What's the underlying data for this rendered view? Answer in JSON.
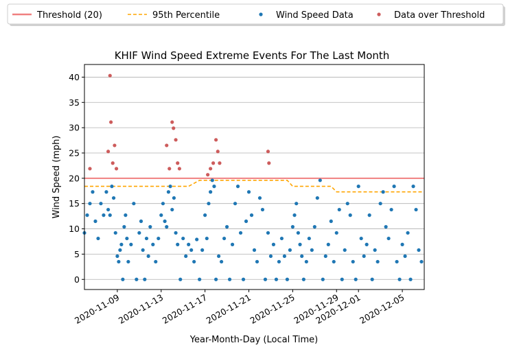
{
  "chart_data": {
    "type": "scatter",
    "title": "KHIF Wind Speed Extreme Events For The Last Month",
    "xlabel": "Year-Month-Day (Local Time)",
    "ylabel": "Wind Speed (mph)",
    "x_tick_labels": [
      "2020-11-09",
      "2020-11-13",
      "2020-11-17",
      "2020-11-21",
      "2020-11-25",
      "2020-11-29",
      "2020-12-01",
      "2020-12-05"
    ],
    "x_ticks": [
      "2020-11-09",
      "2020-11-13",
      "2020-11-17",
      "2020-11-21",
      "2020-11-25",
      "2020-11-29",
      "2020-12-01",
      "2020-12-05"
    ],
    "xlim": [
      "2020-11-06T00:00",
      "2020-12-07T00:00"
    ],
    "y_ticks": [
      0,
      5,
      10,
      15,
      20,
      25,
      30,
      35,
      40
    ],
    "ylim": [
      -2.0,
      42.5
    ],
    "grid": "horizontal",
    "legend_placement": "top, above plot",
    "legend": [
      {
        "label": "Threshold (20)",
        "marker": "solid-line",
        "color": "#f08080"
      },
      {
        "label": "95th Percentile",
        "marker": "dashed-line",
        "color": "#ffa500"
      },
      {
        "label": "Wind Speed Data",
        "marker": "dot",
        "color": "#1f77b4"
      },
      {
        "label": "Data over Threshold",
        "marker": "dot",
        "color": "#cd5c5c"
      }
    ],
    "threshold": {
      "name": "Threshold (20)",
      "value": 20,
      "color": "#f08080"
    },
    "percentile_95": {
      "name": "95th Percentile",
      "color": "#ffa500",
      "x": [
        "2020-11-06",
        "2020-11-15",
        "2020-11-15T12:00",
        "2020-11-16",
        "2020-11-16T12:00",
        "2020-11-24",
        "2020-11-24T12:00",
        "2020-11-25",
        "2020-11-25T12:00",
        "2020-11-26",
        "2020-11-26T12:00",
        "2020-11-28",
        "2020-11-28T12:00",
        "2020-11-29",
        "2020-11-29T12:00",
        "2020-12-07"
      ],
      "y": [
        18.4,
        18.4,
        18.4,
        19.0,
        19.6,
        19.6,
        19.6,
        18.4,
        18.4,
        18.4,
        18.4,
        18.4,
        18.4,
        17.3,
        17.3,
        17.3
      ]
    },
    "series": [
      {
        "name": "Wind Speed Data",
        "color": "#1f77b4",
        "points": [
          [
            "2020-11-06T00:00",
            9.2
          ],
          [
            "2020-11-06T06:00",
            12.7
          ],
          [
            "2020-11-06T12:00",
            15.0
          ],
          [
            "2020-11-06T18:00",
            17.3
          ],
          [
            "2020-11-07T00:00",
            11.5
          ],
          [
            "2020-11-07T06:00",
            8.1
          ],
          [
            "2020-11-07T12:00",
            15.0
          ],
          [
            "2020-11-07T18:00",
            12.7
          ],
          [
            "2020-11-08T00:00",
            17.3
          ],
          [
            "2020-11-08T04:00",
            13.8
          ],
          [
            "2020-11-08T08:00",
            12.7
          ],
          [
            "2020-11-08T12:00",
            18.4
          ],
          [
            "2020-11-08T16:00",
            16.1
          ],
          [
            "2020-11-08T20:00",
            9.2
          ],
          [
            "2020-11-09T00:00",
            4.6
          ],
          [
            "2020-11-09T03:00",
            3.5
          ],
          [
            "2020-11-09T06:00",
            5.8
          ],
          [
            "2020-11-09T09:00",
            6.9
          ],
          [
            "2020-11-09T12:00",
            0.0
          ],
          [
            "2020-11-09T15:00",
            10.4
          ],
          [
            "2020-11-09T18:00",
            12.7
          ],
          [
            "2020-11-09T21:00",
            8.1
          ],
          [
            "2020-11-10T00:00",
            3.5
          ],
          [
            "2020-11-10T06:00",
            6.9
          ],
          [
            "2020-11-10T12:00",
            15.0
          ],
          [
            "2020-11-10T18:00",
            0.0
          ],
          [
            "2020-11-11T00:00",
            9.2
          ],
          [
            "2020-11-11T04:00",
            11.5
          ],
          [
            "2020-11-11T08:00",
            5.8
          ],
          [
            "2020-11-11T12:00",
            0.0
          ],
          [
            "2020-11-11T16:00",
            8.1
          ],
          [
            "2020-11-11T20:00",
            4.6
          ],
          [
            "2020-11-12T00:00",
            10.4
          ],
          [
            "2020-11-12T06:00",
            6.9
          ],
          [
            "2020-11-12T12:00",
            3.5
          ],
          [
            "2020-11-12T18:00",
            8.1
          ],
          [
            "2020-11-13T00:00",
            12.7
          ],
          [
            "2020-11-13T04:00",
            15.0
          ],
          [
            "2020-11-13T08:00",
            11.5
          ],
          [
            "2020-11-13T12:00",
            10.4
          ],
          [
            "2020-11-13T16:00",
            17.3
          ],
          [
            "2020-11-13T20:00",
            18.4
          ],
          [
            "2020-11-14T00:00",
            13.8
          ],
          [
            "2020-11-14T04:00",
            16.1
          ],
          [
            "2020-11-14T08:00",
            9.2
          ],
          [
            "2020-11-14T12:00",
            6.9
          ],
          [
            "2020-11-14T18:00",
            0.0
          ],
          [
            "2020-11-15T00:00",
            8.1
          ],
          [
            "2020-11-15T06:00",
            4.6
          ],
          [
            "2020-11-15T12:00",
            6.9
          ],
          [
            "2020-11-15T18:00",
            5.8
          ],
          [
            "2020-11-16T00:00",
            3.5
          ],
          [
            "2020-11-16T06:00",
            7.9
          ],
          [
            "2020-11-16T12:00",
            0.0
          ],
          [
            "2020-11-16T18:00",
            5.8
          ],
          [
            "2020-11-17T00:00",
            12.7
          ],
          [
            "2020-11-17T04:00",
            8.1
          ],
          [
            "2020-11-17T08:00",
            15.0
          ],
          [
            "2020-11-17T12:00",
            17.3
          ],
          [
            "2020-11-17T16:00",
            19.6
          ],
          [
            "2020-11-17T20:00",
            18.4
          ],
          [
            "2020-11-18T00:00",
            0.0
          ],
          [
            "2020-11-18T06:00",
            4.6
          ],
          [
            "2020-11-18T12:00",
            3.5
          ],
          [
            "2020-11-18T18:00",
            8.1
          ],
          [
            "2020-11-19T00:00",
            10.4
          ],
          [
            "2020-11-19T06:00",
            0.0
          ],
          [
            "2020-11-19T12:00",
            6.9
          ],
          [
            "2020-11-19T18:00",
            15.0
          ],
          [
            "2020-11-20T00:00",
            18.4
          ],
          [
            "2020-11-20T06:00",
            9.2
          ],
          [
            "2020-11-20T12:00",
            0.0
          ],
          [
            "2020-11-20T18:00",
            11.5
          ],
          [
            "2020-11-21T00:00",
            17.3
          ],
          [
            "2020-11-21T06:00",
            12.7
          ],
          [
            "2020-11-21T12:00",
            5.8
          ],
          [
            "2020-11-21T18:00",
            3.5
          ],
          [
            "2020-11-22T00:00",
            16.1
          ],
          [
            "2020-11-22T06:00",
            13.8
          ],
          [
            "2020-11-22T12:00",
            0.0
          ],
          [
            "2020-11-22T18:00",
            9.2
          ],
          [
            "2020-11-23T00:00",
            4.6
          ],
          [
            "2020-11-23T06:00",
            6.9
          ],
          [
            "2020-11-23T12:00",
            0.0
          ],
          [
            "2020-11-23T18:00",
            3.5
          ],
          [
            "2020-11-24T00:00",
            8.1
          ],
          [
            "2020-11-24T06:00",
            4.6
          ],
          [
            "2020-11-24T12:00",
            0.0
          ],
          [
            "2020-11-24T18:00",
            5.8
          ],
          [
            "2020-11-25T00:00",
            10.4
          ],
          [
            "2020-11-25T04:00",
            12.7
          ],
          [
            "2020-11-25T08:00",
            15.0
          ],
          [
            "2020-11-25T12:00",
            9.2
          ],
          [
            "2020-11-25T16:00",
            6.9
          ],
          [
            "2020-11-25T20:00",
            4.6
          ],
          [
            "2020-11-26T00:00",
            0.0
          ],
          [
            "2020-11-26T06:00",
            3.5
          ],
          [
            "2020-11-26T12:00",
            8.1
          ],
          [
            "2020-11-26T18:00",
            5.8
          ],
          [
            "2020-11-27T00:00",
            10.4
          ],
          [
            "2020-11-27T06:00",
            16.1
          ],
          [
            "2020-11-27T12:00",
            19.6
          ],
          [
            "2020-11-27T18:00",
            0.0
          ],
          [
            "2020-11-28T00:00",
            4.6
          ],
          [
            "2020-11-28T06:00",
            6.9
          ],
          [
            "2020-11-28T12:00",
            11.5
          ],
          [
            "2020-11-28T18:00",
            3.5
          ],
          [
            "2020-11-29T00:00",
            9.2
          ],
          [
            "2020-11-29T06:00",
            13.8
          ],
          [
            "2020-11-29T12:00",
            0.0
          ],
          [
            "2020-11-29T18:00",
            5.8
          ],
          [
            "2020-11-30T00:00",
            15.0
          ],
          [
            "2020-11-30T06:00",
            12.7
          ],
          [
            "2020-11-30T12:00",
            3.5
          ],
          [
            "2020-11-30T18:00",
            0.0
          ],
          [
            "2020-12-01T00:00",
            18.4
          ],
          [
            "2020-12-01T06:00",
            8.1
          ],
          [
            "2020-12-01T12:00",
            4.6
          ],
          [
            "2020-12-01T18:00",
            6.9
          ],
          [
            "2020-12-02T00:00",
            12.7
          ],
          [
            "2020-12-02T06:00",
            0.0
          ],
          [
            "2020-12-02T12:00",
            5.8
          ],
          [
            "2020-12-02T18:00",
            3.5
          ],
          [
            "2020-12-03T00:00",
            15.0
          ],
          [
            "2020-12-03T06:00",
            17.3
          ],
          [
            "2020-12-03T12:00",
            10.4
          ],
          [
            "2020-12-03T18:00",
            8.1
          ],
          [
            "2020-12-04T00:00",
            13.8
          ],
          [
            "2020-12-04T06:00",
            18.4
          ],
          [
            "2020-12-04T12:00",
            3.5
          ],
          [
            "2020-12-04T18:00",
            0.0
          ],
          [
            "2020-12-05T00:00",
            6.9
          ],
          [
            "2020-12-05T06:00",
            4.6
          ],
          [
            "2020-12-05T12:00",
            9.2
          ],
          [
            "2020-12-05T18:00",
            0.0
          ],
          [
            "2020-12-06T00:00",
            18.4
          ],
          [
            "2020-12-06T06:00",
            13.8
          ],
          [
            "2020-12-06T12:00",
            5.8
          ],
          [
            "2020-12-06T18:00",
            3.5
          ]
        ]
      },
      {
        "name": "Data over Threshold",
        "color": "#cd5c5c",
        "points": [
          [
            "2020-11-06T12:00",
            21.9
          ],
          [
            "2020-11-08T04:00",
            25.3
          ],
          [
            "2020-11-08T08:00",
            40.3
          ],
          [
            "2020-11-08T10:00",
            31.1
          ],
          [
            "2020-11-08T14:00",
            23.0
          ],
          [
            "2020-11-08T18:00",
            26.5
          ],
          [
            "2020-11-08T22:00",
            21.9
          ],
          [
            "2020-11-13T12:00",
            26.5
          ],
          [
            "2020-11-13T18:00",
            21.9
          ],
          [
            "2020-11-14T00:00",
            31.1
          ],
          [
            "2020-11-14T03:00",
            29.9
          ],
          [
            "2020-11-14T08:00",
            27.6
          ],
          [
            "2020-11-14T12:00",
            23.0
          ],
          [
            "2020-11-14T16:00",
            21.9
          ],
          [
            "2020-11-17T06:00",
            20.7
          ],
          [
            "2020-11-17T12:00",
            21.9
          ],
          [
            "2020-11-17T18:00",
            23.0
          ],
          [
            "2020-11-18T00:00",
            27.6
          ],
          [
            "2020-11-18T04:00",
            25.3
          ],
          [
            "2020-11-18T08:00",
            23.0
          ],
          [
            "2020-11-22T18:00",
            25.3
          ],
          [
            "2020-11-22T20:00",
            23.0
          ]
        ]
      }
    ]
  }
}
